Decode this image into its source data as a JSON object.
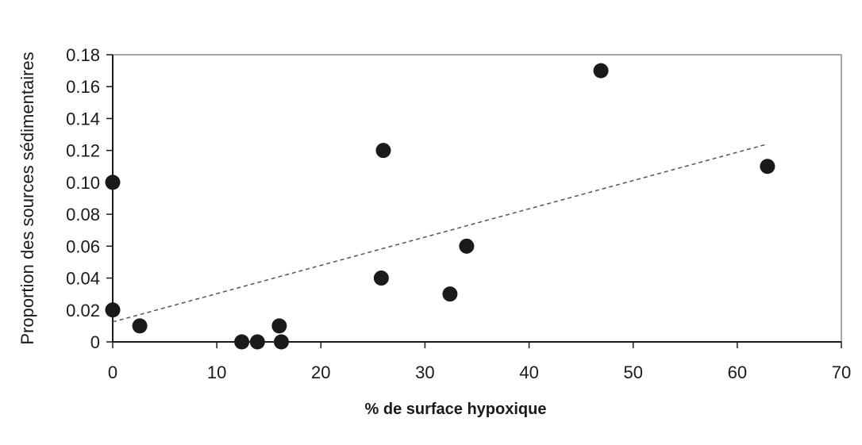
{
  "chart_data": {
    "type": "scatter",
    "title": "",
    "xlabel": "% de surface hypoxique",
    "ylabel": "Proportion des sources sédimentaires",
    "xlim": [
      0,
      70
    ],
    "ylim": [
      0,
      0.18
    ],
    "x_ticks": [
      0,
      10,
      20,
      30,
      40,
      50,
      60,
      70
    ],
    "y_ticks": [
      0,
      0.02,
      0.04,
      0.06,
      0.08,
      0.1,
      0.12,
      0.14,
      0.16,
      0.18
    ],
    "x_tick_labels": [
      "0",
      "10",
      "20",
      "30",
      "40",
      "50",
      "60",
      "70"
    ],
    "y_tick_labels": [
      "0",
      "0.02",
      "0.04",
      "0.06",
      "0.08",
      "0.10",
      "0.12",
      "0.14",
      "0.16",
      "0.18"
    ],
    "grid": false,
    "legend": false,
    "series": [
      {
        "points": [
          [
            0,
            0.1
          ],
          [
            0,
            0.02
          ],
          [
            2.6,
            0.01
          ],
          [
            12.4,
            0.0
          ],
          [
            13.9,
            0.0
          ],
          [
            16.0,
            0.01
          ],
          [
            16.2,
            0.0
          ],
          [
            25.8,
            0.04
          ],
          [
            26.0,
            0.12
          ],
          [
            32.4,
            0.03
          ],
          [
            34.0,
            0.06
          ],
          [
            46.9,
            0.17
          ],
          [
            62.9,
            0.11
          ]
        ],
        "color": "#1a1a1a"
      }
    ],
    "trendline": {
      "style": "dashed",
      "color": "#555555",
      "x": [
        0,
        62.9
      ],
      "y": [
        0.0125,
        0.124
      ]
    }
  }
}
